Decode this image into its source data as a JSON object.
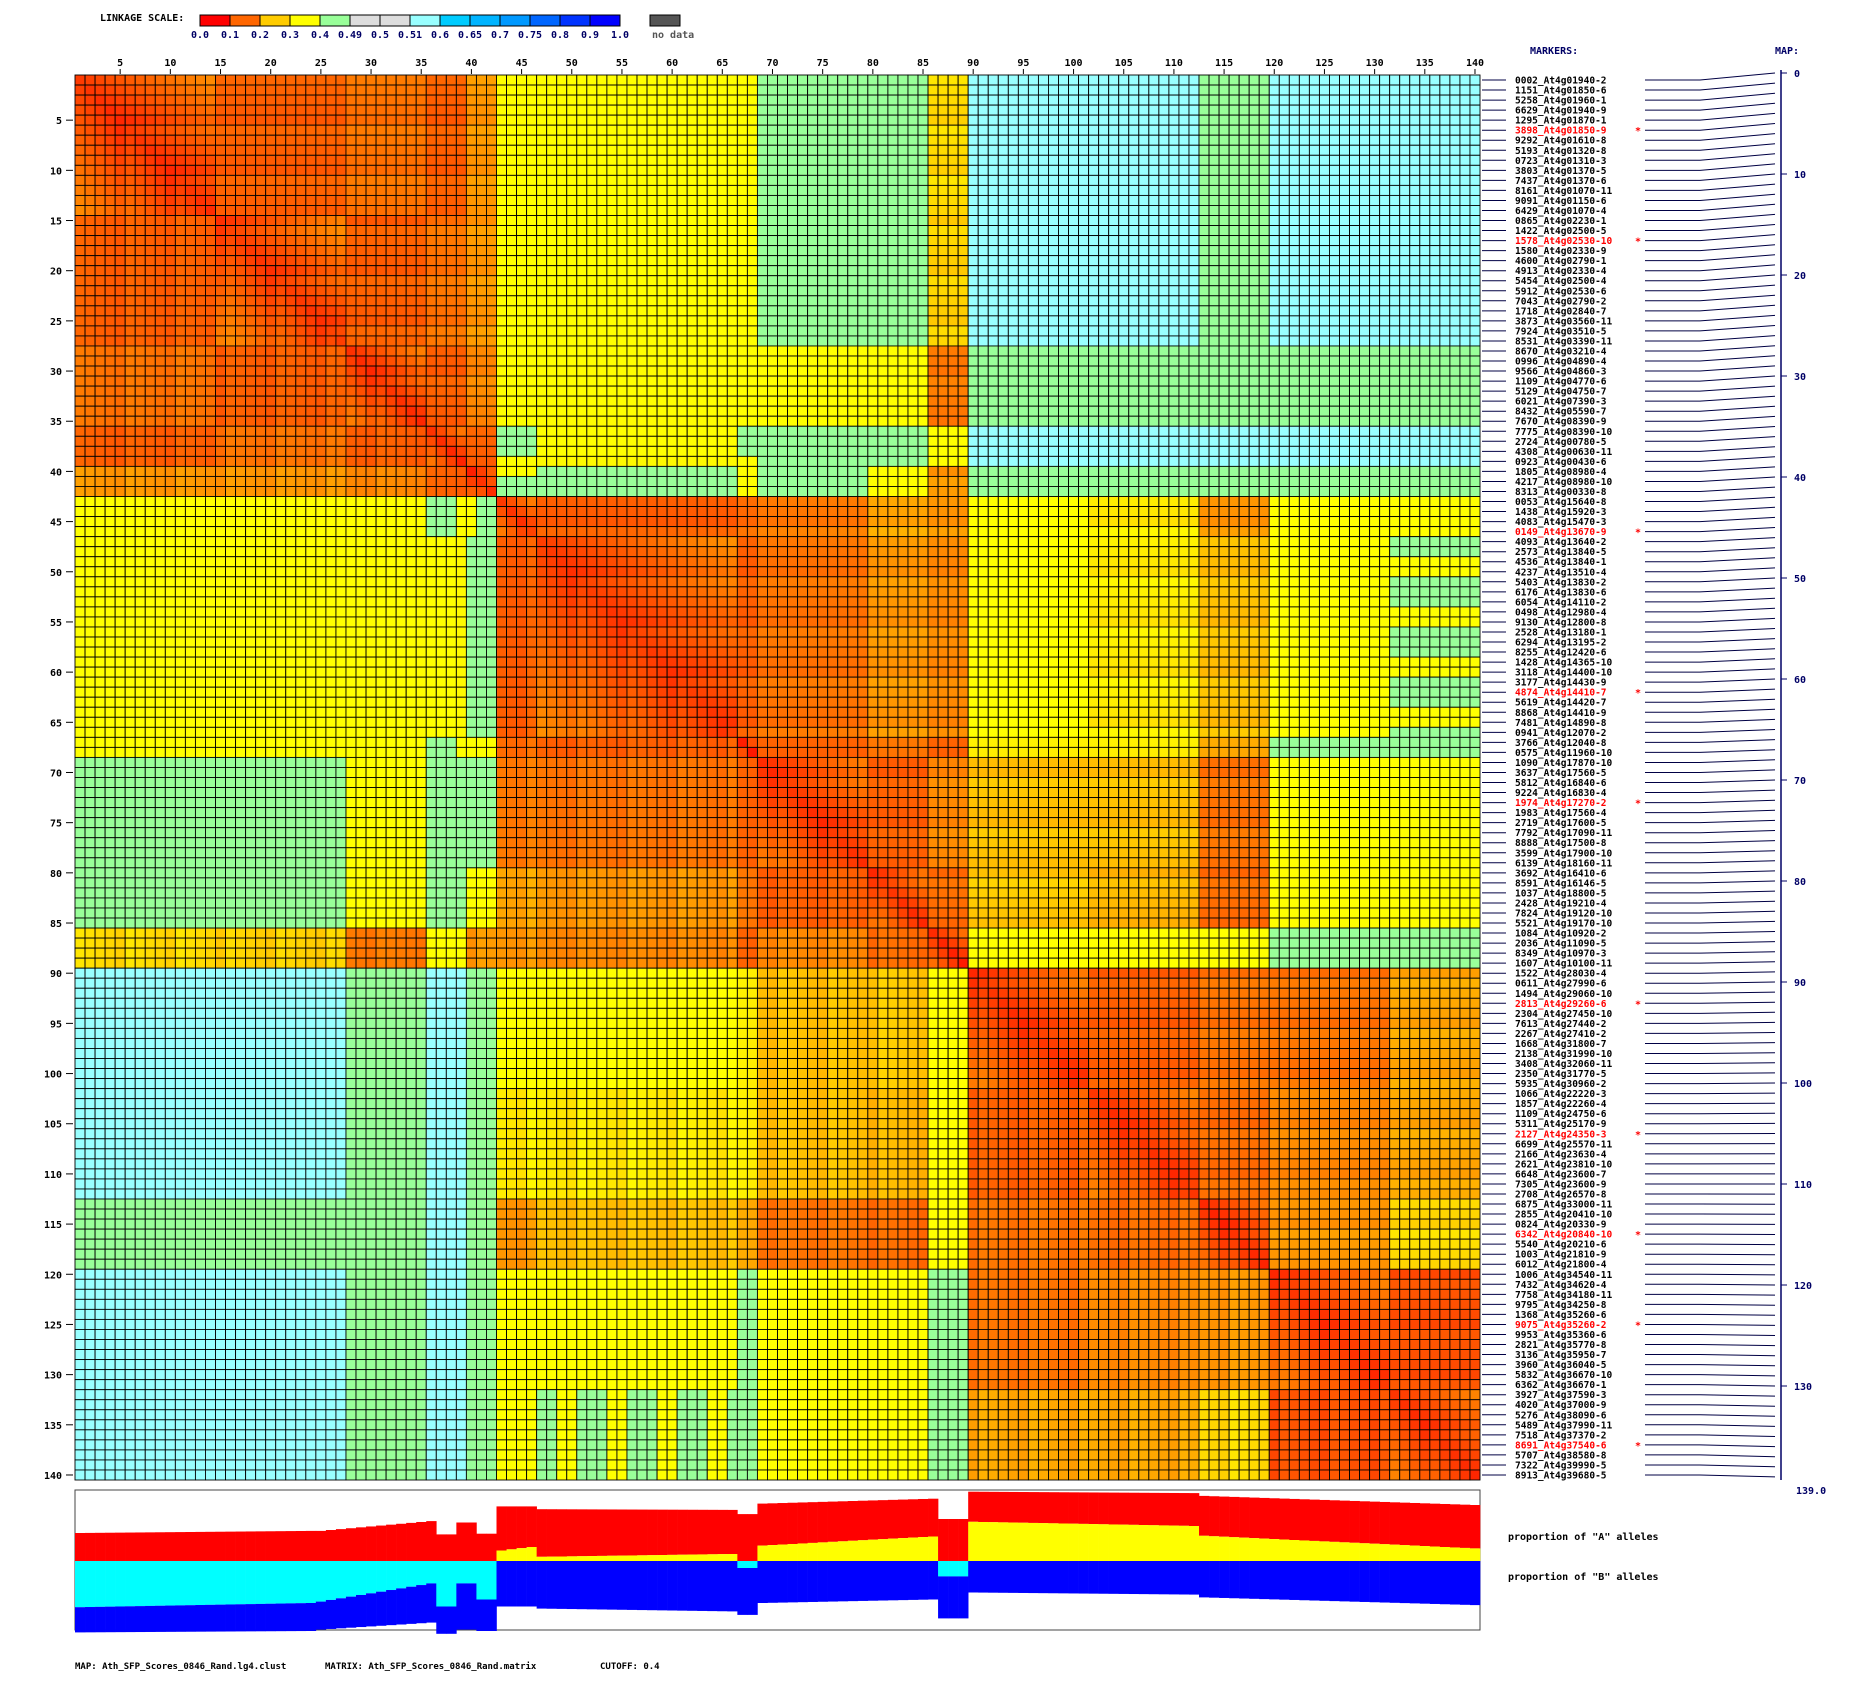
{
  "legend": {
    "title": "LINKAGE SCALE:",
    "colors": [
      "#FF0000",
      "#FF6600",
      "#FFCC00",
      "#FFFF00",
      "#99FF99",
      "#DDDDDD",
      "#DDDDDD",
      "#99FFFF",
      "#00CCFF",
      "#00B4FF",
      "#0099FF",
      "#0066FF",
      "#0033FF",
      "#0000FF"
    ],
    "labels": [
      "0.0",
      "0.1",
      "0.2",
      "0.3",
      "0.4",
      "0.49",
      "0.5",
      "0.51",
      "0.6",
      "0.65",
      "0.7",
      "0.75",
      "0.8",
      "0.9",
      "1.0"
    ],
    "no_data_color": "#555555",
    "no_data_label": "no data"
  },
  "markers_header": "MARKERS:",
  "map_header": "MAP:",
  "map": {
    "ticks": [
      0,
      10,
      20,
      30,
      40,
      50,
      60,
      70,
      80,
      90,
      100,
      110,
      120,
      130
    ],
    "end_label": "139.0",
    "length_cm": 139.0
  },
  "axis_ticks": [
    5,
    10,
    15,
    20,
    25,
    30,
    35,
    40,
    45,
    50,
    55,
    60,
    65,
    70,
    75,
    80,
    85,
    90,
    95,
    100,
    105,
    110,
    115,
    120,
    125,
    130,
    135,
    140
  ],
  "markers": [
    {
      "label": "0002_At4g01940-2"
    },
    {
      "label": "1151_At4g01850-6"
    },
    {
      "label": "5258_At4g01960-1"
    },
    {
      "label": "6629_At4g01940-9"
    },
    {
      "label": "1295_At4g01870-1"
    },
    {
      "label": "3898_At4g01850-9",
      "highlight": true
    },
    {
      "label": "9292_At4g01610-8"
    },
    {
      "label": "5193_At4g01320-8"
    },
    {
      "label": "0723_At4g01310-3"
    },
    {
      "label": "3803_At4g01370-5"
    },
    {
      "label": "7437_At4g01370-6"
    },
    {
      "label": "8161_At4g01070-11"
    },
    {
      "label": "9091_At4g01150-6"
    },
    {
      "label": "6429_At4g01070-4"
    },
    {
      "label": "0865_At4g02230-1"
    },
    {
      "label": "1422_At4g02500-5"
    },
    {
      "label": "1578_At4g02530-10",
      "highlight": true
    },
    {
      "label": "1580_At4g02330-9"
    },
    {
      "label": "4600_At4g02790-1"
    },
    {
      "label": "4913_At4g02330-4"
    },
    {
      "label": "5454_At4g02500-4"
    },
    {
      "label": "5912_At4g02530-6"
    },
    {
      "label": "7043_At4g02790-2"
    },
    {
      "label": "1718_At4g02840-7"
    },
    {
      "label": "3873_At4g03560-11"
    },
    {
      "label": "7924_At4g03510-5"
    },
    {
      "label": "8531_At4g03390-11"
    },
    {
      "label": "8670_At4g03210-4"
    },
    {
      "label": "0996_At4g04890-4"
    },
    {
      "label": "9566_At4g04860-3"
    },
    {
      "label": "1109_At4g04770-6"
    },
    {
      "label": "5129_At4g04750-7"
    },
    {
      "label": "6021_At4g07390-3"
    },
    {
      "label": "8432_At4g05590-7"
    },
    {
      "label": "7670_At4g08390-9"
    },
    {
      "label": "7775_At4g08390-10"
    },
    {
      "label": "2724_At4g00780-5"
    },
    {
      "label": "4308_At4g00630-11"
    },
    {
      "label": "0923_At4g00430-6"
    },
    {
      "label": "1805_At4g08980-4"
    },
    {
      "label": "4217_At4g08980-10"
    },
    {
      "label": "8313_At4g00330-8"
    },
    {
      "label": "0053_At4g15640-8"
    },
    {
      "label": "1438_At4g15920-3"
    },
    {
      "label": "4083_At4g15470-3"
    },
    {
      "label": "0149_At4g13670-9",
      "highlight": true
    },
    {
      "label": "4093_At4g13640-2"
    },
    {
      "label": "2573_At4g13840-5"
    },
    {
      "label": "4536_At4g13840-1"
    },
    {
      "label": "4237_At4g13510-4"
    },
    {
      "label": "5403_At4g13830-2"
    },
    {
      "label": "6176_At4g13830-6"
    },
    {
      "label": "6054_At4g14110-2"
    },
    {
      "label": "0498_At4g12980-4"
    },
    {
      "label": "9130_At4g12800-8"
    },
    {
      "label": "2528_At4g13180-1"
    },
    {
      "label": "6294_At4g13195-2"
    },
    {
      "label": "8255_At4g12420-6"
    },
    {
      "label": "1428_At4g14365-10"
    },
    {
      "label": "3118_At4g14400-10"
    },
    {
      "label": "3177_At4g14430-9"
    },
    {
      "label": "4874_At4g14410-7",
      "highlight": true
    },
    {
      "label": "5619_At4g14420-7"
    },
    {
      "label": "8868_At4g14410-9"
    },
    {
      "label": "7481_At4g14890-8"
    },
    {
      "label": "0941_At4g12070-2"
    },
    {
      "label": "3766_At4g12040-8"
    },
    {
      "label": "0575_At4g11960-10"
    },
    {
      "label": "1090_At4g17870-10"
    },
    {
      "label": "3637_At4g17560-5"
    },
    {
      "label": "5812_At4g16840-6"
    },
    {
      "label": "9224_At4g16830-4"
    },
    {
      "label": "1974_At4g17270-2",
      "highlight": true
    },
    {
      "label": "1983_At4g17560-4"
    },
    {
      "label": "2719_At4g17600-5"
    },
    {
      "label": "7792_At4g17090-11"
    },
    {
      "label": "8888_At4g17500-8"
    },
    {
      "label": "3599_At4g17900-10"
    },
    {
      "label": "6139_At4g18160-11"
    },
    {
      "label": "3692_At4g16410-6"
    },
    {
      "label": "8591_At4g16146-5"
    },
    {
      "label": "1037_At4g18800-5"
    },
    {
      "label": "2428_At4g19210-4"
    },
    {
      "label": "7824_At4g19120-10"
    },
    {
      "label": "5521_At4g19170-10"
    },
    {
      "label": "1084_At4g10920-2"
    },
    {
      "label": "2036_At4g11090-5"
    },
    {
      "label": "8349_At4g10970-3"
    },
    {
      "label": "1607_At4g10100-11"
    },
    {
      "label": "1522_At4g28030-4"
    },
    {
      "label": "0611_At4g27990-6"
    },
    {
      "label": "1494_At4g29060-10"
    },
    {
      "label": "2813_At4g29260-6",
      "highlight": true
    },
    {
      "label": "2304_At4g27450-10"
    },
    {
      "label": "7613_At4g27440-2"
    },
    {
      "label": "2267_At4g27410-2"
    },
    {
      "label": "1668_At4g31800-7"
    },
    {
      "label": "2138_At4g31990-10"
    },
    {
      "label": "3408_At4g32060-11"
    },
    {
      "label": "2350_At4g31770-5"
    },
    {
      "label": "5935_At4g30960-2"
    },
    {
      "label": "1066_At4g22220-3"
    },
    {
      "label": "1857_At4g22260-4"
    },
    {
      "label": "1109_At4g24750-6"
    },
    {
      "label": "5311_At4g25170-9"
    },
    {
      "label": "2127_At4g24350-3",
      "highlight": true
    },
    {
      "label": "6699_At4g25570-11"
    },
    {
      "label": "2166_At4g23630-4"
    },
    {
      "label": "2621_At4g23810-10"
    },
    {
      "label": "6648_At4g23600-7"
    },
    {
      "label": "7305_At4g23600-9"
    },
    {
      "label": "2708_At4g26570-8"
    },
    {
      "label": "6875_At4g33000-11"
    },
    {
      "label": "2855_At4g20410-10"
    },
    {
      "label": "0824_At4g20330-9"
    },
    {
      "label": "6342_At4g20840-10",
      "highlight": true
    },
    {
      "label": "5540_At4g20210-6"
    },
    {
      "label": "1003_At4g21810-9"
    },
    {
      "label": "6012_At4g21800-4"
    },
    {
      "label": "1006_At4g34540-11"
    },
    {
      "label": "7432_At4g34620-4"
    },
    {
      "label": "7758_At4g34180-11"
    },
    {
      "label": "9795_At4g34250-8"
    },
    {
      "label": "1368_At4g35260-6"
    },
    {
      "label": "9075_At4g35260-2",
      "highlight": true
    },
    {
      "label": "9953_At4g35360-6"
    },
    {
      "label": "2821_At4g35770-8"
    },
    {
      "label": "3136_At4g35950-7"
    },
    {
      "label": "3960_At4g36040-5"
    },
    {
      "label": "5832_At4g36670-10"
    },
    {
      "label": "6362_At4g36670-1"
    },
    {
      "label": "3927_At4g37590-3"
    },
    {
      "label": "4020_At4g37000-9"
    },
    {
      "label": "5276_At4g38090-6"
    },
    {
      "label": "5489_At4g37990-11"
    },
    {
      "label": "7518_At4g37370-2"
    },
    {
      "label": "8691_At4g37540-6",
      "highlight": true
    },
    {
      "label": "5707_At4g38580-8"
    },
    {
      "label": "7322_At4g39990-5"
    },
    {
      "label": "8913_At4g39680-5"
    }
  ],
  "highlight_mark": "*",
  "highlight_color": "#FF0000",
  "chart_data": {
    "type": "heatmap",
    "size": 140,
    "value_range": [
      0,
      1
    ],
    "block_bounds": [
      [
        1,
        14
      ],
      [
        15,
        27
      ],
      [
        28,
        35
      ],
      [
        36,
        39
      ],
      [
        40,
        42
      ],
      [
        43,
        46
      ],
      [
        47,
        66
      ],
      [
        67,
        68
      ],
      [
        69,
        79
      ],
      [
        80,
        85
      ],
      [
        86,
        89
      ],
      [
        90,
        101
      ],
      [
        102,
        112
      ],
      [
        113,
        119
      ],
      [
        120,
        131
      ],
      [
        132,
        140
      ]
    ],
    "block_values_upper": [
      [
        0.06,
        0.12,
        0.15,
        0.12,
        0.2,
        0.33,
        0.35,
        0.35,
        0.43,
        0.43,
        0.28,
        0.55,
        0.55,
        0.44,
        0.55,
        0.55
      ],
      [
        0.07,
        0.12,
        0.15,
        0.2,
        0.35,
        0.35,
        0.35,
        0.43,
        0.43,
        0.27,
        0.55,
        0.53,
        0.44,
        0.55,
        0.55
      ],
      [
        0.06,
        0.12,
        0.18,
        0.35,
        0.33,
        0.35,
        0.36,
        0.37,
        0.16,
        0.44,
        0.42,
        0.43,
        0.44,
        0.45
      ],
      [
        0.05,
        0.12,
        0.4,
        0.32,
        0.4,
        0.43,
        0.42,
        0.35,
        0.55,
        0.52,
        0.55,
        0.55,
        0.55
      ],
      [
        0.05,
        0.4,
        0.42,
        0.36,
        0.42,
        0.38,
        0.2,
        0.45,
        0.46,
        0.42,
        0.46,
        0.45
      ],
      [
        0.07,
        0.12,
        0.14,
        0.16,
        0.22,
        0.2,
        0.36,
        0.3,
        0.2,
        0.35,
        0.36
      ],
      [
        0.07,
        0.12,
        0.15,
        0.2,
        0.18,
        0.35,
        0.3,
        0.25,
        0.37,
        0.4
      ],
      [
        0.03,
        0.12,
        0.15,
        0.12,
        0.3,
        0.3,
        0.22,
        0.4,
        0.42
      ],
      [
        0.06,
        0.12,
        0.18,
        0.25,
        0.25,
        0.15,
        0.34,
        0.36
      ],
      [
        0.06,
        0.14,
        0.26,
        0.24,
        0.14,
        0.33,
        0.34
      ],
      [
        0.04,
        0.35,
        0.36,
        0.35,
        0.43,
        0.43
      ],
      [
        0.06,
        0.12,
        0.15,
        0.15,
        0.22
      ],
      [
        0.06,
        0.14,
        0.18,
        0.22
      ],
      [
        0.05,
        0.2,
        0.28
      ],
      [
        0.06,
        0.1
      ],
      [
        0.06
      ]
    ]
  },
  "allele_panel": {
    "label_a": "proportion of \"A\" alleles",
    "label_b": "proportion of \"B\" alleles",
    "colors": {
      "a": "#FF0000",
      "het_a": "#FFFF00",
      "het_b": "#00FFFF",
      "b": "#0000FF"
    },
    "segments": [
      {
        "from": 1,
        "to": 24,
        "a": [
          0.4,
          0.43
        ],
        "het_a": [
          0,
          0
        ],
        "het_b": [
          0.66,
          0.6
        ],
        "b": [
          1.02,
          1.0
        ]
      },
      {
        "from": 25,
        "to": 36,
        "a": [
          0.43,
          0.57
        ],
        "het_a": [
          0,
          0
        ],
        "het_b": [
          0.58,
          0.32
        ],
        "b": [
          0.98,
          0.88
        ]
      },
      {
        "from": 37,
        "to": 38,
        "a": [
          0.38,
          0.38
        ],
        "het_a": [
          0,
          0
        ],
        "het_b": [
          0.65,
          0.65
        ],
        "b": [
          1.04,
          1.04
        ]
      },
      {
        "from": 39,
        "to": 40,
        "a": [
          0.55,
          0.55
        ],
        "het_a": [
          0,
          0
        ],
        "het_b": [
          0.32,
          0.32
        ],
        "b": [
          0.98,
          0.98
        ]
      },
      {
        "from": 41,
        "to": 42,
        "a": [
          0.39,
          0.39
        ],
        "het_a": [
          0,
          0
        ],
        "het_b": [
          0.55,
          0.55
        ],
        "b": [
          1.0,
          1.0
        ]
      },
      {
        "from": 43,
        "to": 46,
        "a": [
          0.78,
          0.78
        ],
        "het_a": [
          0.15,
          0.2
        ],
        "het_b": [
          0,
          0
        ],
        "b": [
          0.65,
          0.65
        ]
      },
      {
        "from": 47,
        "to": 66,
        "a": [
          0.74,
          0.73
        ],
        "het_a": [
          0.06,
          0.1
        ],
        "het_b": [
          0,
          0
        ],
        "b": [
          0.68,
          0.72
        ]
      },
      {
        "from": 67,
        "to": 68,
        "a": [
          0.67,
          0.67
        ],
        "het_a": [
          0,
          0
        ],
        "het_b": [
          0.1,
          0.1
        ],
        "b": [
          0.77,
          0.77
        ]
      },
      {
        "from": 69,
        "to": 86,
        "a": [
          0.82,
          0.89
        ],
        "het_a": [
          0.22,
          0.35
        ],
        "het_b": [
          0,
          0
        ],
        "b": [
          0.6,
          0.55
        ]
      },
      {
        "from": 87,
        "to": 89,
        "a": [
          0.6,
          0.6
        ],
        "het_a": [
          0,
          0
        ],
        "het_b": [
          0.22,
          0.22
        ],
        "b": [
          0.82,
          0.82
        ]
      },
      {
        "from": 90,
        "to": 112,
        "a": [
          0.99,
          0.97
        ],
        "het_a": [
          0.56,
          0.5
        ],
        "het_b": [
          0,
          0
        ],
        "b": [
          0.45,
          0.48
        ]
      },
      {
        "from": 113,
        "to": 140,
        "a": [
          0.93,
          0.8
        ],
        "het_a": [
          0.36,
          0.18
        ],
        "het_b": [
          0,
          0
        ],
        "b": [
          0.52,
          0.63
        ]
      }
    ]
  },
  "footer": {
    "map": "MAP: Ath_SFP_Scores_0846_Rand.lg4.clust",
    "matrix": "MATRIX: Ath_SFP_Scores_0846_Rand.matrix",
    "cutoff": "CUTOFF: 0.4"
  }
}
